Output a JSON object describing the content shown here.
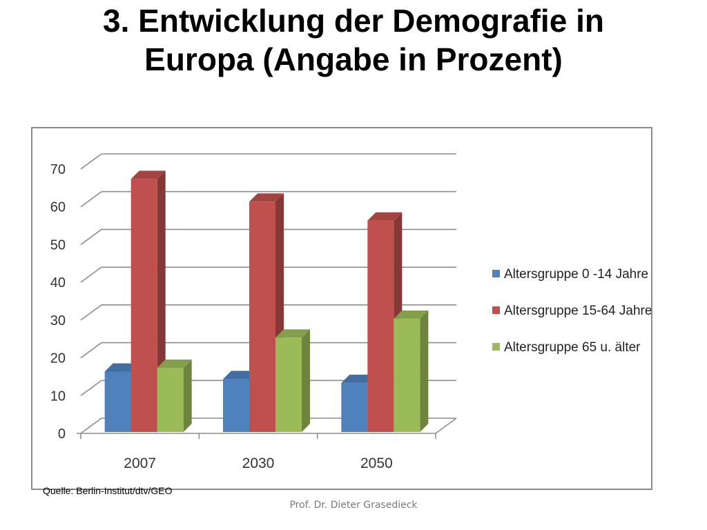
{
  "slide": {
    "title_line1": "3. Entwicklung der Demografie in",
    "title_line2": "Europa (Angabe in Prozent)",
    "source": "Quelle: Berlin-Institut/dtv/GEO",
    "author": "Prof. Dr. Dieter Grasedieck"
  },
  "chart_data": {
    "type": "bar",
    "title": "",
    "xlabel": "",
    "ylabel": "",
    "categories": [
      "2007",
      "2030",
      "2050"
    ],
    "series": [
      {
        "name": "Altersgruppe 0 -14 Jahre",
        "color": "#4f81bd",
        "values": [
          16,
          14,
          13
        ]
      },
      {
        "name": "Altersgruppe 15-64 Jahre",
        "color": "#c0504d",
        "values": [
          67,
          61,
          56
        ]
      },
      {
        "name": "Altersgruppe 65 u. älter",
        "color": "#9bbb59",
        "values": [
          17,
          25,
          30
        ]
      }
    ],
    "ylim": [
      0,
      70
    ],
    "yticks": [
      0,
      10,
      20,
      30,
      40,
      50,
      60,
      70
    ],
    "grid": true,
    "legend_position": "right",
    "style": "3d-clustered-column"
  }
}
